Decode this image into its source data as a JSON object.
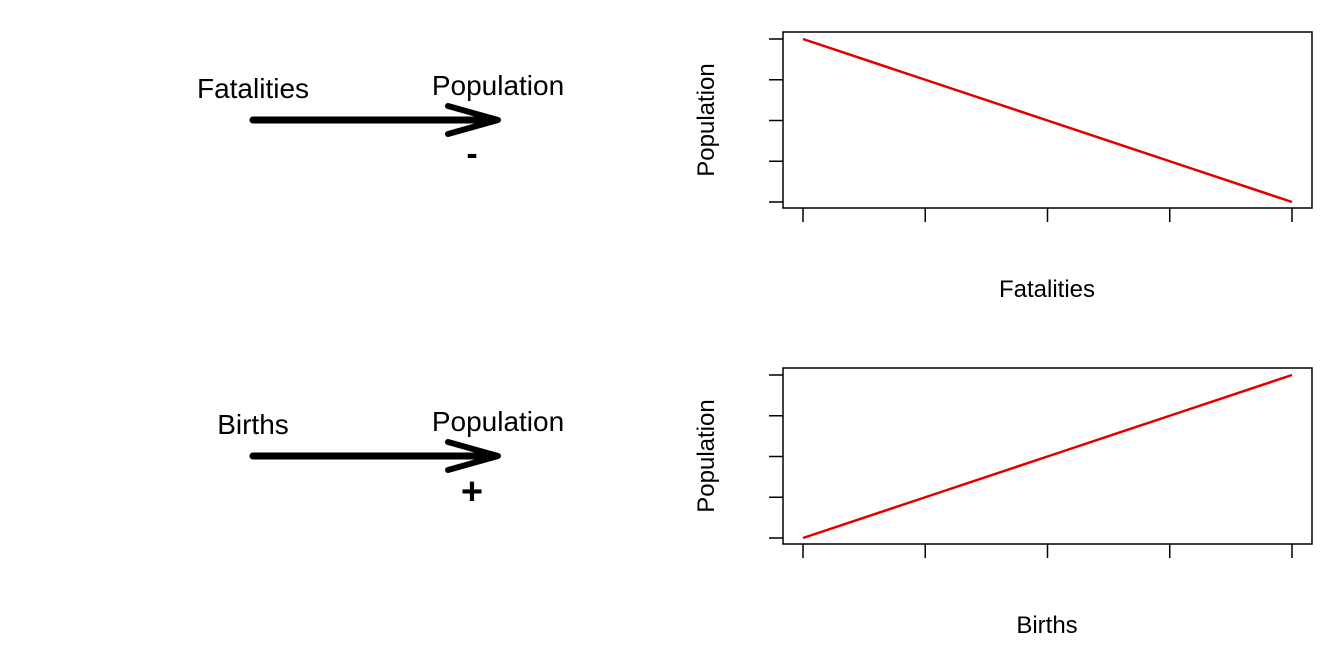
{
  "diagrams": [
    {
      "cause": "Fatalities",
      "effect": "Population",
      "sign": "-"
    },
    {
      "cause": "Births",
      "effect": "Population",
      "sign": "+"
    }
  ],
  "line_color": "#e00000",
  "chart_data": [
    {
      "type": "line",
      "xlabel": "Fatalities",
      "ylabel": "Population",
      "x": [
        0,
        1,
        2,
        3,
        4
      ],
      "y": [
        4,
        3,
        2,
        1,
        0
      ],
      "xlim": [
        0,
        4
      ],
      "ylim": [
        0,
        4
      ],
      "x_ticks": 5,
      "y_ticks": 5,
      "tick_labels_shown": false,
      "grid": false
    },
    {
      "type": "line",
      "xlabel": "Births",
      "ylabel": "Population",
      "x": [
        0,
        1,
        2,
        3,
        4
      ],
      "y": [
        0,
        1,
        2,
        3,
        4
      ],
      "xlim": [
        0,
        4
      ],
      "ylim": [
        0,
        4
      ],
      "x_ticks": 5,
      "y_ticks": 5,
      "tick_labels_shown": false,
      "grid": false
    }
  ]
}
